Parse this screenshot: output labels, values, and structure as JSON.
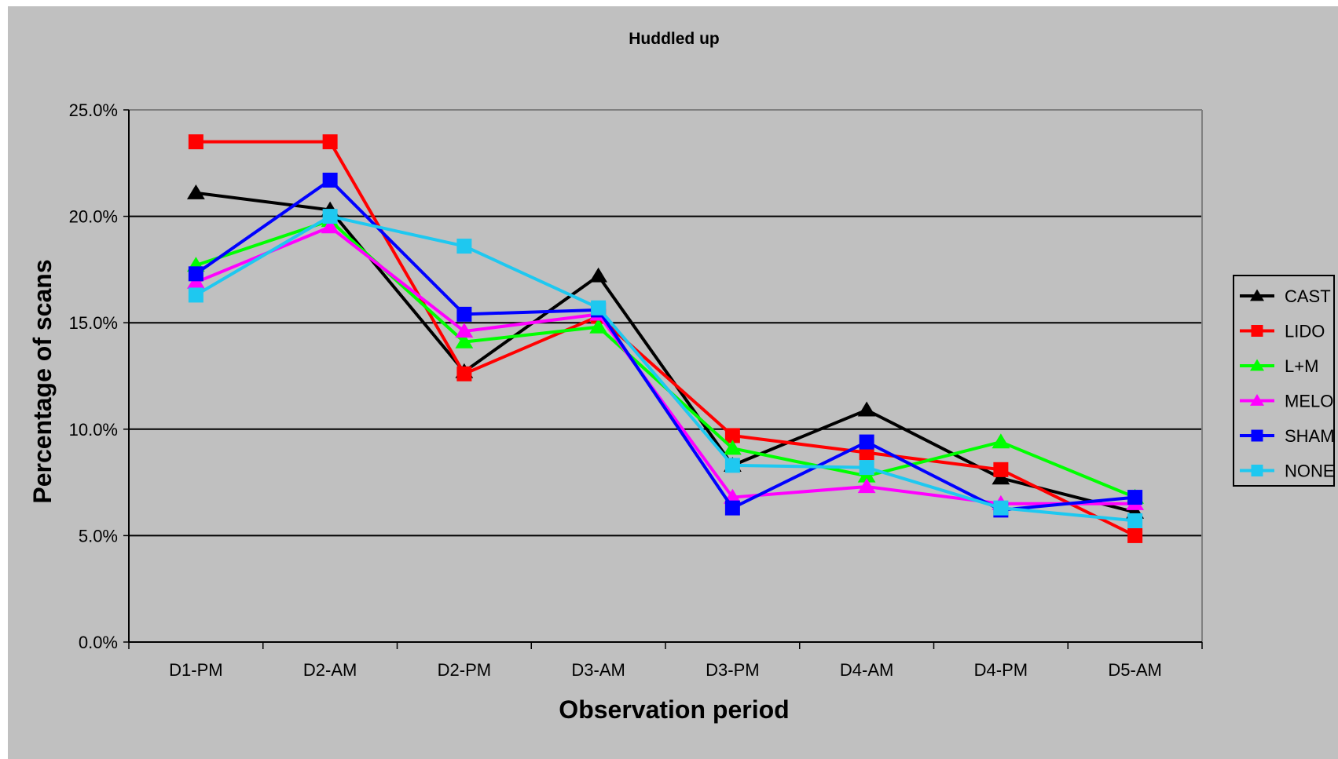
{
  "chart_data": {
    "type": "line",
    "title": "Huddled up",
    "xlabel": "Observation period",
    "ylabel": "Percentage of scans",
    "categories": [
      "D1-PM",
      "D2-AM",
      "D2-PM",
      "D3-AM",
      "D3-PM",
      "D4-AM",
      "D4-PM",
      "D5-AM"
    ],
    "ylim": [
      0,
      25
    ],
    "yticks": [
      "0.0%",
      "5.0%",
      "10.0%",
      "15.0%",
      "20.0%",
      "25.0%"
    ],
    "ytick_values": [
      0,
      5,
      10,
      15,
      20,
      25
    ],
    "grid": true,
    "legend_position": "right",
    "series": [
      {
        "name": "CAST",
        "color": "#000000",
        "marker": "triangle",
        "values": [
          21.1,
          20.3,
          12.7,
          17.2,
          8.3,
          10.9,
          7.7,
          6.1
        ]
      },
      {
        "name": "LIDO",
        "color": "#ff0000",
        "marker": "square",
        "values": [
          23.5,
          23.5,
          12.6,
          15.3,
          9.7,
          8.9,
          8.1,
          5.0
        ]
      },
      {
        "name": "L+M",
        "color": "#00ff00",
        "marker": "triangle",
        "values": [
          17.7,
          19.8,
          14.1,
          14.8,
          9.1,
          7.8,
          9.4,
          6.8
        ]
      },
      {
        "name": "MELO",
        "color": "#ff00ff",
        "marker": "triangle",
        "values": [
          16.9,
          19.5,
          14.6,
          15.4,
          6.8,
          7.3,
          6.5,
          6.5
        ]
      },
      {
        "name": "SHAM",
        "color": "#0000ff",
        "marker": "square",
        "values": [
          17.3,
          21.7,
          15.4,
          15.6,
          6.3,
          9.4,
          6.2,
          6.8
        ]
      },
      {
        "name": "NONE",
        "color": "#1ec8f0",
        "marker": "square",
        "values": [
          16.3,
          20.0,
          18.6,
          15.7,
          8.3,
          8.2,
          6.3,
          5.7
        ]
      }
    ]
  }
}
